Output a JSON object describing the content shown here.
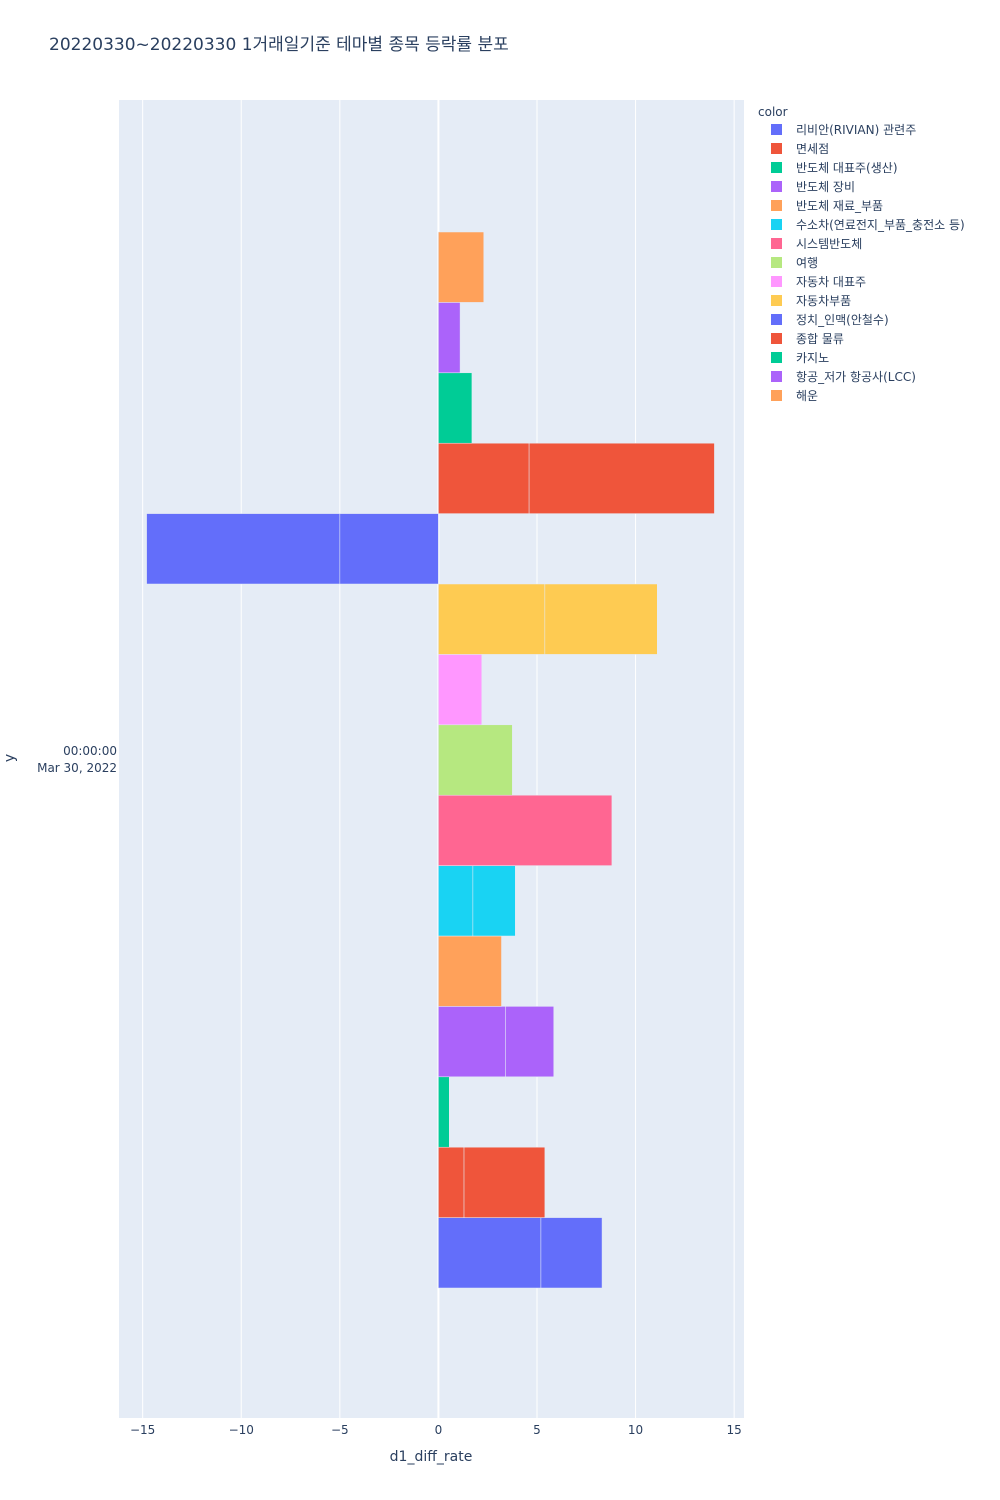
{
  "chart_data": {
    "type": "bar",
    "orientation": "horizontal",
    "barmode": "relative",
    "title": "20220330~20220330 1거래일기준 테마별 종목 등락률 분포",
    "xlabel": "d1_diff_rate",
    "ylabel": "y",
    "y_category_lines": [
      "00:00:00",
      "Mar 30, 2022"
    ],
    "xlim": [
      -16.2,
      15.5
    ],
    "x_ticks": [
      -15,
      -10,
      -5,
      0,
      5,
      10,
      15
    ],
    "x_tick_labels": [
      "−15",
      "−10",
      "−5",
      "0",
      "5",
      "10",
      "15"
    ],
    "grid": true,
    "legend_title": "color",
    "legend_position": "right",
    "series": [
      {
        "name": "리비안(RIVIAN) 관련주",
        "color": "#636efa",
        "values": [
          5.2,
          3.1
        ]
      },
      {
        "name": "면세점",
        "color": "#EF553B",
        "values": [
          1.3,
          4.1
        ]
      },
      {
        "name": "반도체 대표주(생산)",
        "color": "#00cc96",
        "values": [
          0.55
        ]
      },
      {
        "name": "반도체 장비",
        "color": "#ab63fa",
        "values": [
          3.4,
          2.45
        ]
      },
      {
        "name": "반도체 재료_부품",
        "color": "#FFA15A",
        "values": [
          3.2
        ]
      },
      {
        "name": "수소차(연료전지_부품_충전소 등)",
        "color": "#19d3f3",
        "values": [
          1.75,
          2.15
        ]
      },
      {
        "name": "시스템반도체",
        "color": "#FF6692",
        "values": [
          8.8
        ]
      },
      {
        "name": "여행",
        "color": "#B6E880",
        "values": [
          3.75
        ]
      },
      {
        "name": "자동차 대표주",
        "color": "#FF97FF",
        "values": [
          2.2
        ]
      },
      {
        "name": "자동차부품",
        "color": "#FECB52",
        "values": [
          5.4,
          5.7
        ]
      },
      {
        "name": "정치_인맥(안철수)",
        "color": "#636efa",
        "values": [
          -5.0,
          -9.8
        ]
      },
      {
        "name": "종합 물류",
        "color": "#EF553B",
        "values": [
          4.6,
          9.4
        ]
      },
      {
        "name": "카지노",
        "color": "#00cc96",
        "values": [
          1.7
        ]
      },
      {
        "name": "항공_저가 항공사(LCC)",
        "color": "#ab63fa",
        "values": [
          1.1
        ]
      },
      {
        "name": "해운",
        "color": "#FFA15A",
        "values": [
          2.3
        ]
      }
    ]
  }
}
